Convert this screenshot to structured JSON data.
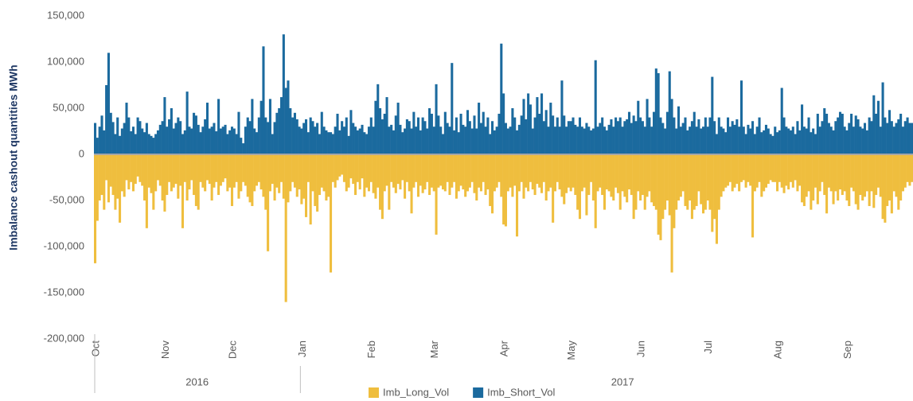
{
  "chart_data": {
    "type": "bar",
    "ylabel": "Imbalance cashout quantities MWh",
    "ylim": [
      -200000,
      150000
    ],
    "yticks": [
      {
        "value": -200000,
        "label": "-200,000"
      },
      {
        "value": -150000,
        "label": "-150,000"
      },
      {
        "value": -100000,
        "label": "-100,000"
      },
      {
        "value": -50000,
        "label": "-50,000"
      },
      0,
      {
        "value": 50000,
        "label": "50,000"
      },
      {
        "value": 100000,
        "label": "100,000"
      },
      {
        "value": 150000,
        "label": "150,000"
      }
    ],
    "years": [
      "2016",
      "2017"
    ],
    "legend": "bottom",
    "categories": [
      "Oct",
      null,
      null,
      null,
      null,
      null,
      null,
      null,
      null,
      null,
      null,
      null,
      null,
      null,
      null,
      null,
      null,
      null,
      null,
      null,
      null,
      null,
      null,
      null,
      null,
      null,
      null,
      null,
      null,
      null,
      null,
      "Nov",
      null,
      null,
      null,
      null,
      null,
      null,
      null,
      null,
      null,
      null,
      null,
      null,
      null,
      null,
      null,
      null,
      null,
      null,
      null,
      null,
      null,
      null,
      null,
      null,
      null,
      null,
      null,
      null,
      null,
      "Dec",
      null,
      null,
      null,
      null,
      null,
      null,
      null,
      null,
      null,
      null,
      null,
      null,
      null,
      null,
      null,
      null,
      null,
      null,
      null,
      null,
      null,
      null,
      null,
      null,
      null,
      null,
      null,
      null,
      null,
      null,
      "Jan",
      null,
      null,
      null,
      null,
      null,
      null,
      null,
      null,
      null,
      null,
      null,
      null,
      null,
      null,
      null,
      null,
      null,
      null,
      null,
      null,
      null,
      null,
      null,
      null,
      null,
      null,
      null,
      null,
      null,
      null,
      "Feb",
      null,
      null,
      null,
      null,
      null,
      null,
      null,
      null,
      null,
      null,
      null,
      null,
      null,
      null,
      null,
      null,
      null,
      null,
      null,
      null,
      null,
      null,
      null,
      null,
      null,
      null,
      null,
      "Mar",
      null,
      null,
      null,
      null,
      null,
      null,
      null,
      null,
      null,
      null,
      null,
      null,
      null,
      null,
      null,
      null,
      null,
      null,
      null,
      null,
      null,
      null,
      null,
      null,
      null,
      null,
      null,
      null,
      null,
      null,
      "Apr",
      null,
      null,
      null,
      null,
      null,
      null,
      null,
      null,
      null,
      null,
      null,
      null,
      null,
      null,
      null,
      null,
      null,
      null,
      null,
      null,
      null,
      null,
      null,
      null,
      null,
      null,
      null,
      null,
      null,
      "May",
      null,
      null,
      null,
      null,
      null,
      null,
      null,
      null,
      null,
      null,
      null,
      null,
      null,
      null,
      null,
      null,
      null,
      null,
      null,
      null,
      null,
      null,
      null,
      null,
      null,
      null,
      null,
      null,
      null,
      null,
      "Jun",
      null,
      null,
      null,
      null,
      null,
      null,
      null,
      null,
      null,
      null,
      null,
      null,
      null,
      null,
      null,
      null,
      null,
      null,
      null,
      null,
      null,
      null,
      null,
      null,
      null,
      null,
      null,
      null,
      null,
      "Jul",
      null,
      null,
      null,
      null,
      null,
      null,
      null,
      null,
      null,
      null,
      null,
      null,
      null,
      null,
      null,
      null,
      null,
      null,
      null,
      null,
      null,
      null,
      null,
      null,
      null,
      null,
      null,
      null,
      null,
      null,
      "Aug",
      null,
      null,
      null,
      null,
      null,
      null,
      null,
      null,
      null,
      null,
      null,
      null,
      null,
      null,
      null,
      null,
      null,
      null,
      null,
      null,
      null,
      null,
      null,
      null,
      null,
      null,
      null,
      null,
      null,
      null,
      "Sep",
      null,
      null,
      null,
      null,
      null,
      null,
      null,
      null,
      null,
      null,
      null,
      null,
      null,
      null,
      null,
      null,
      null,
      null,
      null,
      null,
      null,
      null,
      null,
      null,
      null,
      null,
      null,
      null,
      null
    ],
    "series": [
      {
        "name": "Imb_Long_Vol",
        "color": "#efbe3e",
        "values": [
          -118000,
          -72000,
          -50000,
          -44000,
          -60000,
          -28000,
          -52000,
          -35000,
          -44000,
          -60000,
          -48000,
          -74000,
          -40000,
          -46000,
          -28000,
          -38000,
          -30000,
          -40000,
          -32000,
          -24000,
          -30000,
          -34000,
          -50000,
          -80000,
          -36000,
          -42000,
          -60000,
          -40000,
          -28000,
          -34000,
          -50000,
          -62000,
          -44000,
          -30000,
          -40000,
          -36000,
          -32000,
          -48000,
          -34000,
          -80000,
          -30000,
          -50000,
          -38000,
          -28000,
          -44000,
          -56000,
          -60000,
          -30000,
          -36000,
          -40000,
          -28000,
          -32000,
          -50000,
          -36000,
          -30000,
          -44000,
          -34000,
          -30000,
          -26000,
          -40000,
          -36000,
          -56000,
          -36000,
          -30000,
          -48000,
          -40000,
          -30000,
          -34000,
          -46000,
          -52000,
          -56000,
          -40000,
          -34000,
          -30000,
          -38000,
          -46000,
          -60000,
          -105000,
          -40000,
          -32000,
          -50000,
          -36000,
          -42000,
          -30000,
          -48000,
          -160000,
          -52000,
          -40000,
          -30000,
          -36000,
          -46000,
          -38000,
          -54000,
          -48000,
          -68000,
          -30000,
          -76000,
          -40000,
          -56000,
          -62000,
          -44000,
          -36000,
          -40000,
          -50000,
          -46000,
          -128000,
          -30000,
          -36000,
          -28000,
          -24000,
          -22000,
          -30000,
          -40000,
          -36000,
          -26000,
          -32000,
          -44000,
          -30000,
          -38000,
          -26000,
          -46000,
          -36000,
          -40000,
          -30000,
          -42000,
          -48000,
          -36000,
          -60000,
          -70000,
          -40000,
          -34000,
          -60000,
          -30000,
          -36000,
          -42000,
          -32000,
          -38000,
          -28000,
          -48000,
          -30000,
          -40000,
          -64000,
          -36000,
          -30000,
          -46000,
          -34000,
          -42000,
          -38000,
          -30000,
          -44000,
          -36000,
          -40000,
          -87000,
          -36000,
          -34000,
          -38000,
          -40000,
          -30000,
          -44000,
          -36000,
          -30000,
          -48000,
          -40000,
          -34000,
          -38000,
          -46000,
          -40000,
          -36000,
          -30000,
          -42000,
          -50000,
          -36000,
          -40000,
          -30000,
          -44000,
          -38000,
          -56000,
          -64000,
          -40000,
          -36000,
          -30000,
          -46000,
          -76000,
          -78000,
          -40000,
          -36000,
          -46000,
          -34000,
          -89000,
          -40000,
          -30000,
          -48000,
          -36000,
          -40000,
          -30000,
          -38000,
          -44000,
          -32000,
          -36000,
          -42000,
          -30000,
          -50000,
          -40000,
          -36000,
          -74000,
          -40000,
          -30000,
          -38000,
          -46000,
          -54000,
          -42000,
          -36000,
          -40000,
          -36000,
          -44000,
          -60000,
          -70000,
          -40000,
          -36000,
          -66000,
          -44000,
          -30000,
          -50000,
          -80000,
          -40000,
          -36000,
          -44000,
          -60000,
          -38000,
          -40000,
          -46000,
          -50000,
          -36000,
          -42000,
          -60000,
          -40000,
          -46000,
          -52000,
          -38000,
          -44000,
          -70000,
          -60000,
          -40000,
          -50000,
          -44000,
          -60000,
          -46000,
          -40000,
          -52000,
          -56000,
          -60000,
          -87000,
          -93000,
          -70000,
          -60000,
          -50000,
          -66000,
          -128000,
          -80000,
          -60000,
          -50000,
          -46000,
          -40000,
          -56000,
          -60000,
          -50000,
          -70000,
          -60000,
          -56000,
          -40000,
          -54000,
          -64000,
          -60000,
          -50000,
          -60000,
          -84000,
          -70000,
          -97000,
          -60000,
          -46000,
          -40000,
          -36000,
          -34000,
          -30000,
          -40000,
          -36000,
          -32000,
          -40000,
          -30000,
          -28000,
          -36000,
          -30000,
          -34000,
          -90000,
          -40000,
          -36000,
          -30000,
          -46000,
          -40000,
          -36000,
          -32000,
          -28000,
          -30000,
          -30000,
          -40000,
          -30000,
          -36000,
          -42000,
          -34000,
          -38000,
          -30000,
          -36000,
          -28000,
          -40000,
          -34000,
          -52000,
          -56000,
          -46000,
          -40000,
          -60000,
          -50000,
          -36000,
          -54000,
          -40000,
          -30000,
          -44000,
          -64000,
          -36000,
          -40000,
          -54000,
          -40000,
          -50000,
          -38000,
          -44000,
          -40000,
          -50000,
          -56000,
          -36000,
          -40000,
          -54000,
          -60000,
          -44000,
          -50000,
          -46000,
          -40000,
          -56000,
          -40000,
          -58000,
          -44000,
          -36000,
          -46000,
          -70000,
          -74000,
          -56000,
          -50000,
          -64000,
          -40000,
          -46000,
          -60000,
          -50000,
          -40000,
          -36000,
          -30000,
          -34000,
          -30000
        ]
      },
      {
        "name": "Imb_Short_Vol",
        "color": "#1b6a9e",
        "values": [
          34000,
          18000,
          30000,
          42000,
          26000,
          75000,
          110000,
          45000,
          35000,
          22000,
          40000,
          20000,
          28000,
          34000,
          56000,
          40000,
          25000,
          30000,
          22000,
          40000,
          36000,
          28000,
          24000,
          34000,
          22000,
          20000,
          18000,
          22000,
          26000,
          32000,
          36000,
          62000,
          30000,
          38000,
          50000,
          28000,
          34000,
          40000,
          36000,
          22000,
          26000,
          68000,
          30000,
          28000,
          45000,
          42000,
          32000,
          24000,
          30000,
          38000,
          56000,
          28000,
          30000,
          34000,
          25000,
          60000,
          28000,
          30000,
          32000,
          22000,
          26000,
          30000,
          28000,
          22000,
          46000,
          18000,
          12000,
          30000,
          40000,
          36000,
          60000,
          28000,
          24000,
          40000,
          58000,
          117000,
          40000,
          35000,
          60000,
          22000,
          35000,
          45000,
          50000,
          62000,
          130000,
          72000,
          80000,
          50000,
          40000,
          45000,
          38000,
          30000,
          28000,
          34000,
          38000,
          24000,
          40000,
          36000,
          30000,
          34000,
          22000,
          46000,
          30000,
          26000,
          24000,
          24000,
          22000,
          30000,
          44000,
          26000,
          36000,
          30000,
          40000,
          20000,
          48000,
          34000,
          30000,
          26000,
          28000,
          32000,
          24000,
          22000,
          30000,
          40000,
          30000,
          58000,
          76000,
          50000,
          38000,
          44000,
          62000,
          30000,
          32000,
          26000,
          42000,
          56000,
          32000,
          24000,
          28000,
          38000,
          36000,
          28000,
          46000,
          30000,
          40000,
          26000,
          40000,
          36000,
          28000,
          50000,
          44000,
          30000,
          76000,
          42000,
          30000,
          22000,
          46000,
          34000,
          30000,
          99000,
          26000,
          40000,
          24000,
          44000,
          32000,
          30000,
          48000,
          36000,
          28000,
          42000,
          28000,
          56000,
          34000,
          46000,
          30000,
          40000,
          22000,
          36000,
          26000,
          30000,
          44000,
          120000,
          66000,
          34000,
          28000,
          30000,
          50000,
          40000,
          26000,
          32000,
          42000,
          60000,
          38000,
          66000,
          54000,
          28000,
          40000,
          62000,
          44000,
          66000,
          36000,
          48000,
          30000,
          56000,
          42000,
          30000,
          40000,
          30000,
          80000,
          42000,
          30000,
          36000,
          36000,
          40000,
          32000,
          30000,
          40000,
          30000,
          28000,
          34000,
          30000,
          26000,
          28000,
          102000,
          30000,
          34000,
          40000,
          30000,
          26000,
          32000,
          38000,
          30000,
          40000,
          36000,
          40000,
          30000,
          36000,
          38000,
          46000,
          34000,
          42000,
          36000,
          58000,
          40000,
          36000,
          30000,
          60000,
          40000,
          30000,
          46000,
          93000,
          88000,
          40000,
          34000,
          28000,
          46000,
          90000,
          60000,
          40000,
          28000,
          52000,
          30000,
          34000,
          40000,
          26000,
          30000,
          36000,
          46000,
          30000,
          38000,
          28000,
          30000,
          40000,
          30000,
          40000,
          84000,
          36000,
          22000,
          40000,
          30000,
          28000,
          24000,
          40000,
          30000,
          36000,
          32000,
          38000,
          30000,
          80000,
          30000,
          22000,
          32000,
          28000,
          36000,
          22000,
          30000,
          40000,
          24000,
          26000,
          32000,
          28000,
          22000,
          20000,
          30000,
          24000,
          26000,
          72000,
          40000,
          30000,
          28000,
          26000,
          30000,
          22000,
          36000,
          26000,
          54000,
          30000,
          28000,
          40000,
          24000,
          28000,
          22000,
          44000,
          30000,
          36000,
          50000,
          44000,
          34000,
          30000,
          26000,
          36000,
          40000,
          46000,
          44000,
          30000,
          26000,
          34000,
          44000,
          30000,
          42000,
          38000,
          30000,
          28000,
          34000,
          26000,
          40000,
          36000,
          64000,
          44000,
          58000,
          30000,
          78000,
          40000,
          34000,
          48000,
          36000,
          30000,
          34000,
          38000,
          44000,
          30000,
          36000,
          40000,
          34000,
          34000
        ]
      }
    ]
  }
}
